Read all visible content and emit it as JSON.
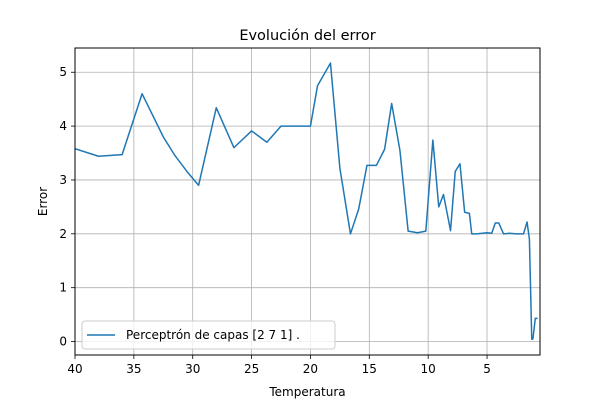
{
  "chart_data": {
    "type": "line",
    "title": "Evolución del error",
    "xlabel": "Temperatura",
    "ylabel": "Error",
    "xlim": [
      40,
      0.5
    ],
    "ylim": [
      -0.25,
      5.45
    ],
    "x_ticks": [
      40,
      35,
      30,
      25,
      20,
      15,
      10,
      5
    ],
    "y_ticks": [
      0,
      1,
      2,
      3,
      4,
      5
    ],
    "grid": true,
    "legend_position": "lower-left",
    "series": [
      {
        "name": "Perceptrón de capas [2 7 1] .",
        "color": "#1f77b4",
        "x": [
          40,
          38,
          36,
          34.3,
          32.5,
          31.5,
          30.5,
          29.5,
          28,
          26.5,
          25,
          23.7,
          22.5,
          20,
          19.4,
          18.3,
          17.5,
          16.6,
          15.9,
          15.2,
          14.4,
          13.7,
          13.1,
          12.4,
          11.7,
          10.9,
          10.2,
          9.6,
          9.1,
          8.7,
          8.1,
          7.7,
          7.3,
          6.9,
          6.5,
          6.3,
          5.9,
          5.4,
          5.0,
          4.6,
          4.3,
          4.0,
          3.6,
          3.1,
          2.5,
          1.9,
          1.6,
          1.4,
          1.2,
          1.1,
          0.9,
          0.7
        ],
        "y": [
          3.58,
          3.44,
          3.47,
          4.6,
          3.8,
          3.45,
          3.16,
          2.9,
          4.34,
          3.6,
          3.91,
          3.7,
          4.0,
          4.0,
          4.75,
          5.17,
          3.22,
          2.0,
          2.46,
          3.27,
          3.27,
          3.57,
          4.42,
          3.55,
          2.05,
          2.02,
          2.05,
          3.74,
          2.5,
          2.73,
          2.06,
          3.16,
          3.3,
          2.4,
          2.38,
          2.0,
          2.0,
          2.01,
          2.02,
          2.01,
          2.2,
          2.2,
          2.0,
          2.01,
          2.0,
          2.0,
          2.22,
          1.9,
          0.04,
          0.05,
          0.43,
          0.43
        ]
      }
    ]
  }
}
